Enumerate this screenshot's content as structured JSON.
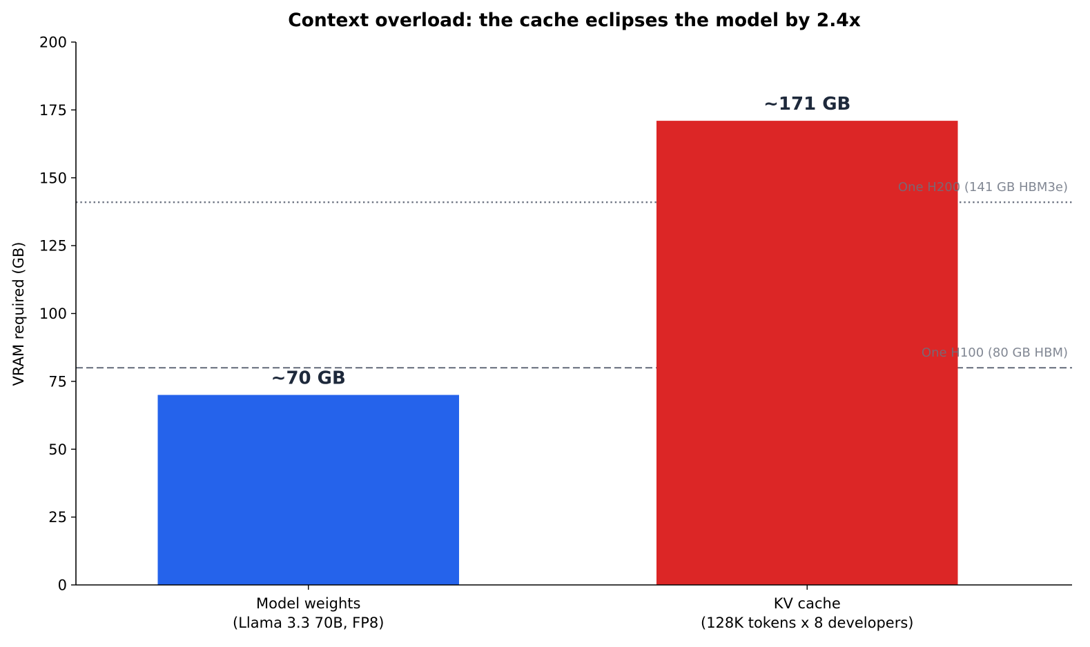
{
  "chart_data": {
    "type": "bar",
    "title": "Context overload: the cache eclipses the model by 2.4x",
    "xlabel": "",
    "ylabel": "VRAM required (GB)",
    "ylim": [
      0,
      200
    ],
    "yticks": [
      0,
      25,
      50,
      75,
      100,
      125,
      150,
      175,
      200
    ],
    "grid": false,
    "categories": [
      [
        "Model weights",
        "(Llama 3.3 70B, FP8)"
      ],
      [
        "KV cache",
        "(128K tokens x 8 developers)"
      ]
    ],
    "values": [
      70,
      171
    ],
    "value_labels": [
      "~70 GB",
      "~171 GB"
    ],
    "colors": [
      "#2563eb",
      "#dc2626"
    ],
    "reference_lines": [
      {
        "value": 141,
        "label": "One H200 (141 GB HBM3e)",
        "style": "dotted",
        "color": "#6b7280"
      },
      {
        "value": 80,
        "label": "One H100 (80 GB HBM)",
        "style": "dashed",
        "color": "#6b7280"
      }
    ]
  }
}
